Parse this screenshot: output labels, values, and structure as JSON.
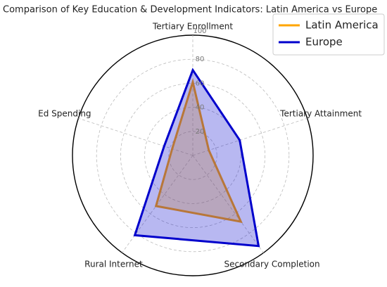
{
  "chart_data": {
    "type": "radar",
    "title": "Comparison of Key Education & Development Indicators: Latin America vs Europe",
    "categories": [
      "Tertiary Enrollment",
      "Tertiary Attainment",
      "Secondary Completion",
      "Rural Internet",
      "Ed Spending"
    ],
    "series": [
      {
        "name": "Latin America",
        "color": "#ffa500",
        "values": [
          61,
          14,
          68,
          52,
          18
        ]
      },
      {
        "name": "Europe",
        "color": "#0000cc",
        "values": [
          71,
          41,
          93,
          82,
          25
        ]
      }
    ],
    "rlim": [
      0,
      100
    ],
    "rticks": [
      20,
      40,
      60,
      80,
      100
    ],
    "grid": true,
    "legend": "upper right"
  }
}
